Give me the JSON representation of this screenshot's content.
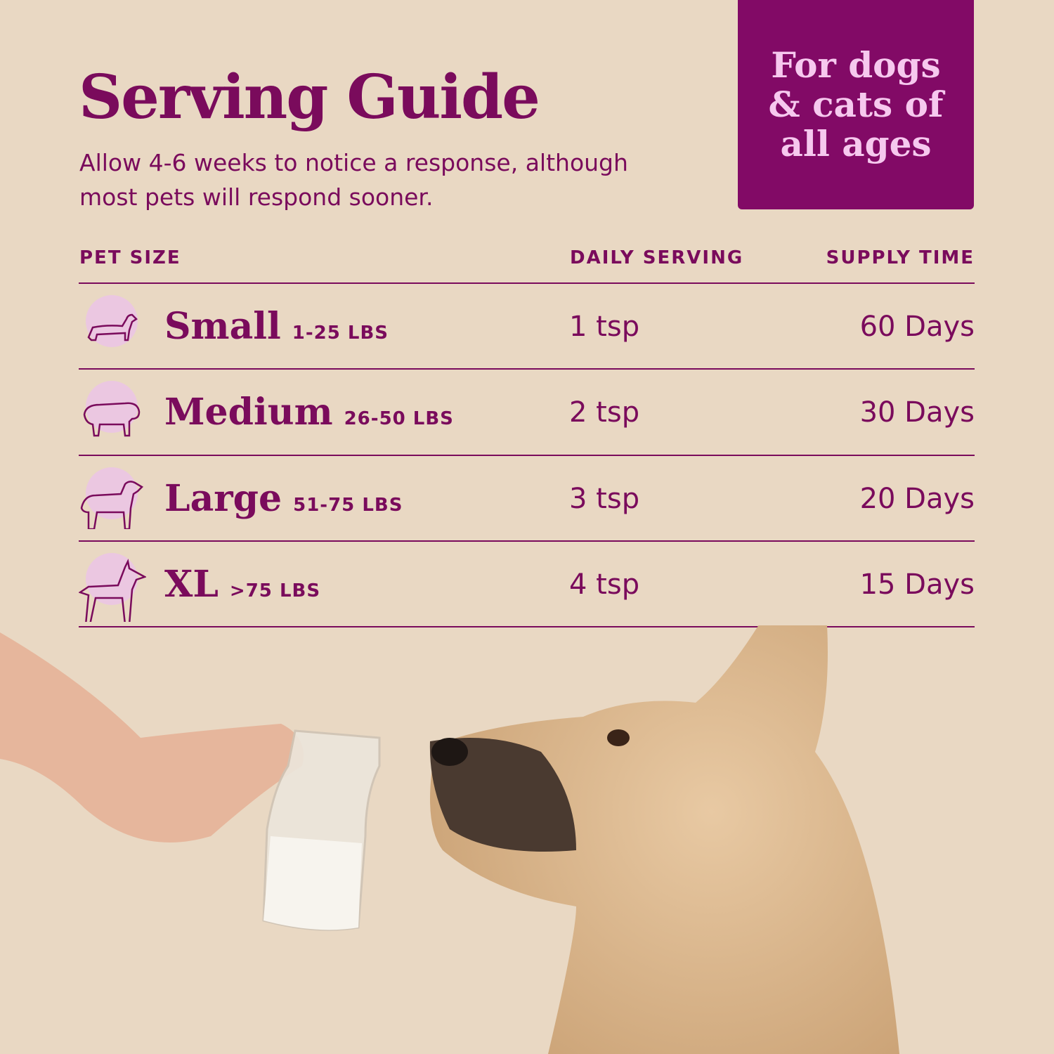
{
  "title": "Serving Guide",
  "subtitle": "Allow 4-6 weeks to notice a response, although most pets will respond sooner.",
  "badge": "For dogs\n& cats of\nall ages",
  "table": {
    "headers": [
      "PET SIZE",
      "DAILY SERVING",
      "SUPPLY TIME"
    ],
    "rows": [
      {
        "icon": "dachshund-icon",
        "size": "Small",
        "weight": "1-25 LBS",
        "serving": "1 tsp",
        "supply": "60 Days"
      },
      {
        "icon": "bulldog-icon",
        "size": "Medium",
        "weight": "26-50 LBS",
        "serving": "2 tsp",
        "supply": "30 Days"
      },
      {
        "icon": "retriever-icon",
        "size": "Large",
        "weight": "51-75 LBS",
        "serving": "3 tsp",
        "supply": "20 Days"
      },
      {
        "icon": "doberman-icon",
        "size": "XL",
        "weight": ">75 LBS",
        "serving": "4 tsp",
        "supply": "15 Days"
      }
    ]
  },
  "colors": {
    "background": "#e9d8c3",
    "accent": "#7a0b5c",
    "badge": "#820a66",
    "badge_text": "#f6c8ee",
    "icon_circle": "#ebc7e1"
  }
}
